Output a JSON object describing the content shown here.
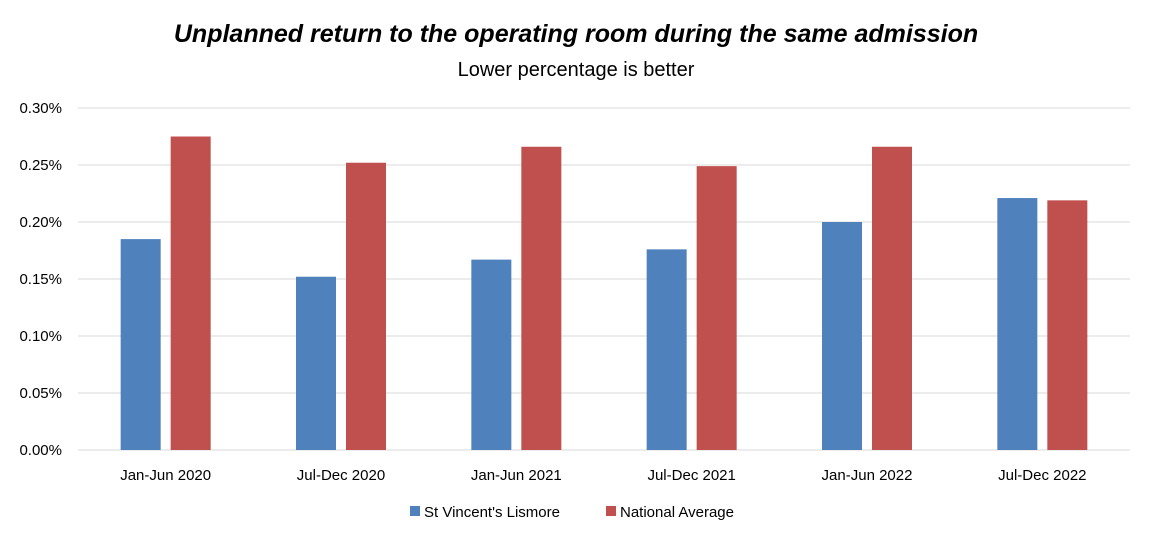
{
  "chart_data": {
    "type": "bar",
    "title": "Unplanned return to the operating room during the same admission",
    "subtitle": "Lower percentage is better",
    "categories": [
      "Jan-Jun 2020",
      "Jul-Dec 2020",
      "Jan-Jun 2021",
      "Jul-Dec 2021",
      "Jan-Jun 2022",
      "Jul-Dec 2022"
    ],
    "series": [
      {
        "name": "St Vincent's Lismore",
        "color": "#4f81bd",
        "values": [
          0.185,
          0.152,
          0.167,
          0.176,
          0.2,
          0.221
        ]
      },
      {
        "name": "National Average",
        "color": "#c0504d",
        "values": [
          0.275,
          0.252,
          0.266,
          0.249,
          0.266,
          0.219
        ]
      }
    ],
    "ylim": [
      0,
      0.3
    ],
    "yticks": [
      "0.00%",
      "0.05%",
      "0.10%",
      "0.15%",
      "0.20%",
      "0.25%",
      "0.30%"
    ],
    "ytick_values": [
      0,
      0.05,
      0.1,
      0.15,
      0.2,
      0.25,
      0.3
    ],
    "grid": true,
    "gridline_color": "#d9d9d9",
    "legend_position": "bottom"
  }
}
